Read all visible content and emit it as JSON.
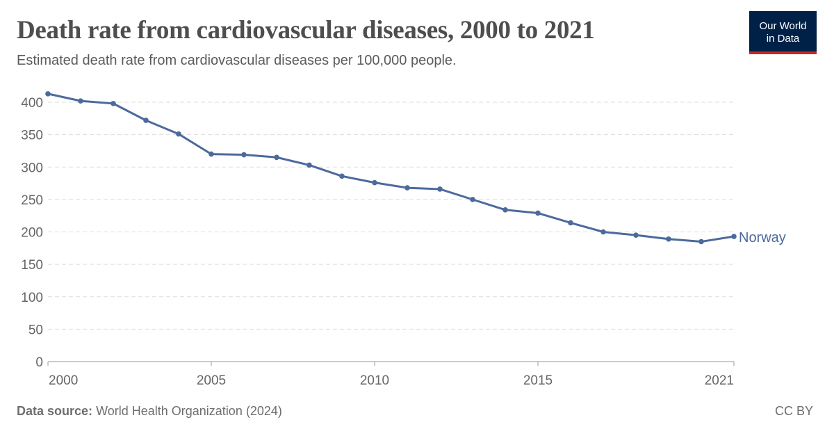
{
  "header": {
    "title": "Death rate from cardiovascular diseases, 2000 to 2021",
    "subtitle": "Estimated death rate from cardiovascular diseases per 100,000 people.",
    "logo_line1": "Our World",
    "logo_line2": "in Data"
  },
  "footer": {
    "source_label": "Data source:",
    "source_text": "World Health Organization (2024)",
    "license": "CC BY"
  },
  "colors": {
    "series": "#4c6a9c",
    "logo_bg": "#002147",
    "logo_accent": "#ce261e"
  },
  "chart_data": {
    "type": "line",
    "title": "Death rate from cardiovascular diseases, 2000 to 2021",
    "subtitle": "Estimated death rate from cardiovascular diseases per 100,000 people.",
    "xlabel": "",
    "ylabel": "",
    "xlim": [
      2000,
      2021
    ],
    "ylim": [
      0,
      400
    ],
    "x_ticks": [
      "2000",
      "2005",
      "2010",
      "2015",
      "2021"
    ],
    "y_ticks": [
      "0",
      "50",
      "100",
      "150",
      "200",
      "250",
      "300",
      "350",
      "400"
    ],
    "grid": "horizontal dashed",
    "legend": "end-of-line label",
    "series": [
      {
        "name": "Norway",
        "x": [
          2000,
          2001,
          2002,
          2003,
          2004,
          2005,
          2006,
          2007,
          2008,
          2009,
          2010,
          2011,
          2012,
          2013,
          2014,
          2015,
          2016,
          2017,
          2018,
          2019,
          2020,
          2021
        ],
        "values": [
          413,
          402,
          398,
          372,
          351,
          320,
          319,
          315,
          303,
          286,
          276,
          268,
          266,
          250,
          234,
          229,
          214,
          200,
          195,
          189,
          185,
          193
        ]
      }
    ]
  }
}
